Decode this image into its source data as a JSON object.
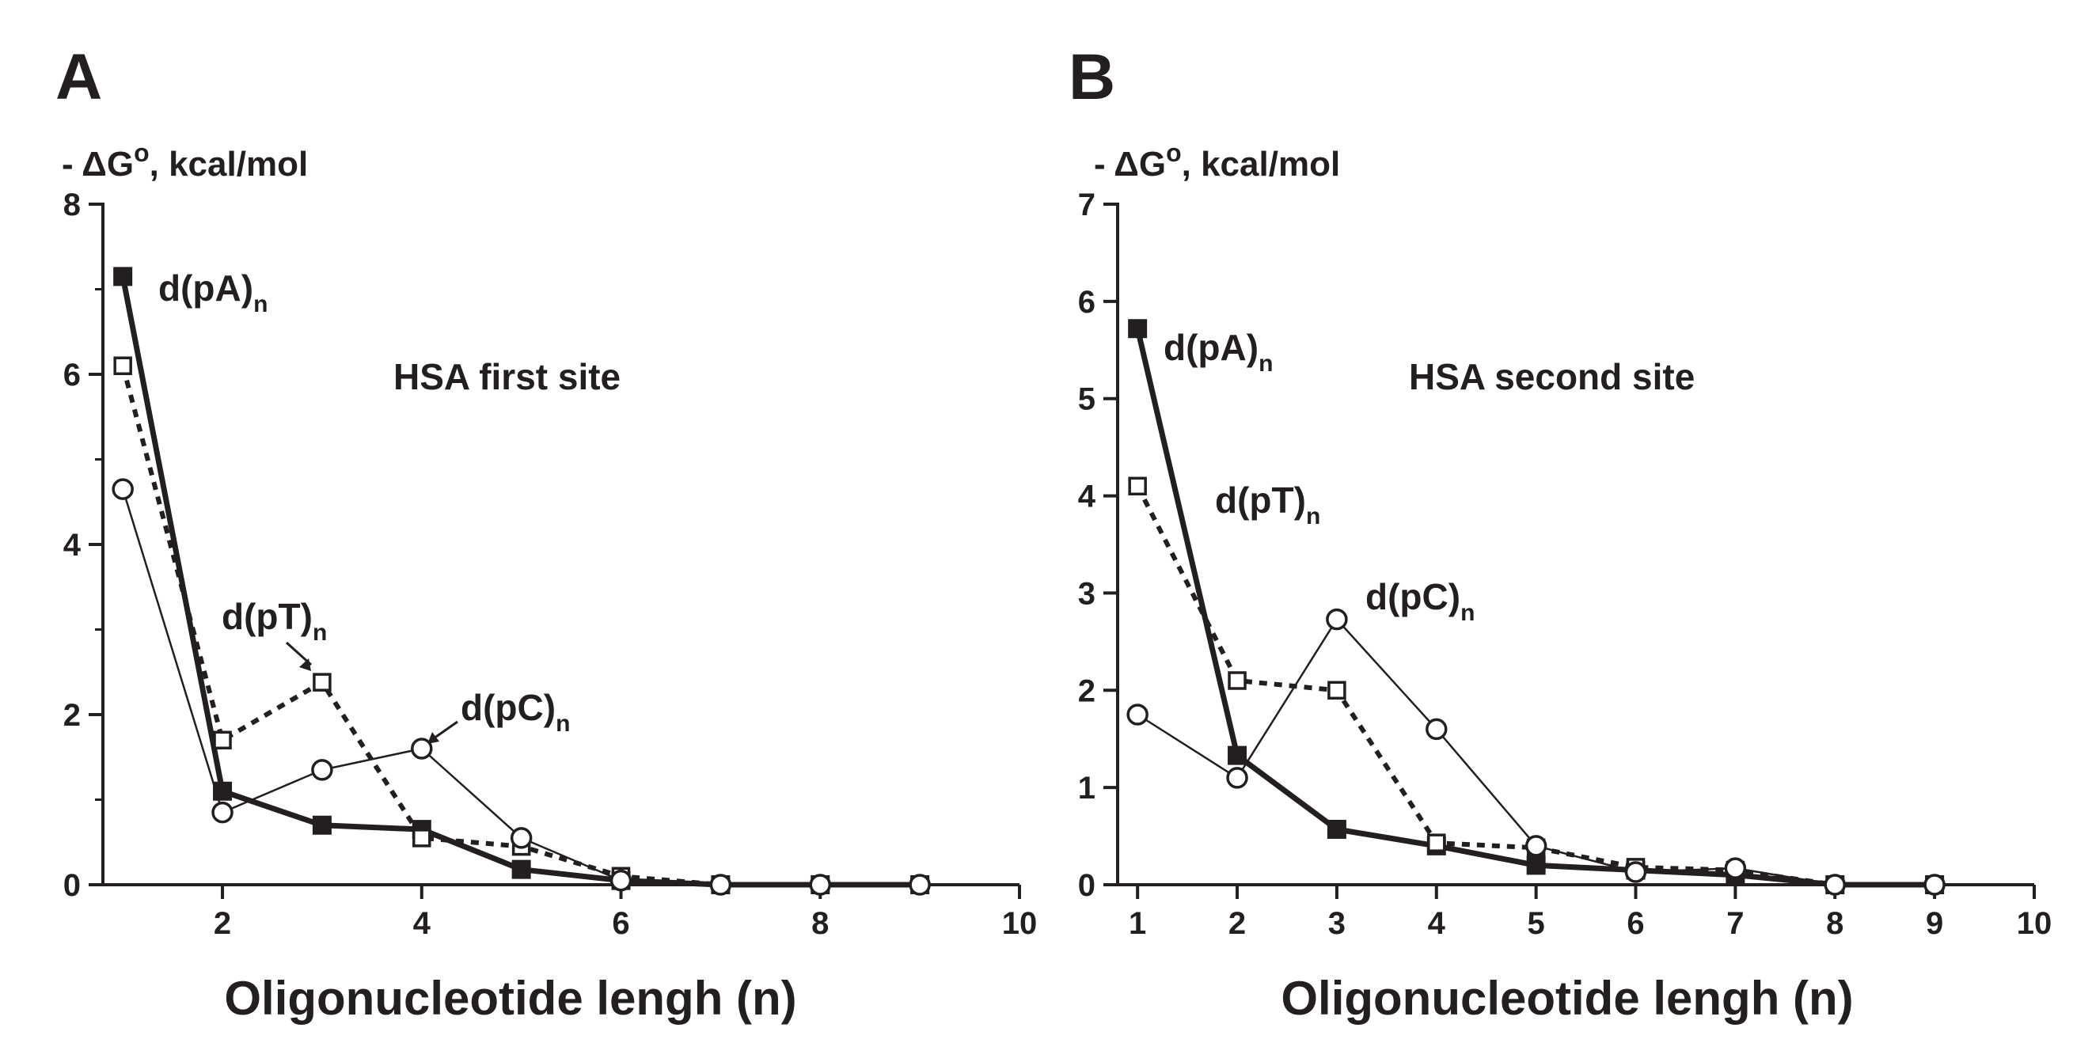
{
  "chart_data": [
    {
      "panel": "A",
      "type": "line",
      "ylabel": "- ΔG",
      "ylabel_sup": "o",
      "ylabel_units": ", kcal/mol",
      "xlabel": "Oligonucleotide lengh (n)",
      "xlim": [
        0.8,
        10
      ],
      "ylim": [
        0,
        8
      ],
      "xticks": [
        2,
        4,
        6,
        8,
        10
      ],
      "yticks": [
        0,
        2,
        4,
        6,
        8
      ],
      "annotations": [
        {
          "text": "HSA first site"
        },
        {
          "text": "d(pA)",
          "sub": "n"
        },
        {
          "text": "d(pT)",
          "sub": "n"
        },
        {
          "text": "d(pC)",
          "sub": "n"
        }
      ],
      "series": [
        {
          "id": "pA",
          "marker": "filled-square",
          "line": "thick-solid",
          "x": [
            1,
            2,
            3,
            4,
            5,
            6,
            7,
            8,
            9
          ],
          "y": [
            7.15,
            1.1,
            0.7,
            0.65,
            0.18,
            0.05,
            0.0,
            0.0,
            0.0
          ]
        },
        {
          "id": "pT",
          "marker": "open-square",
          "line": "dotted",
          "x": [
            1,
            2,
            3,
            4,
            5,
            6,
            7,
            8,
            9
          ],
          "y": [
            6.1,
            1.7,
            2.38,
            0.55,
            0.45,
            0.1,
            0.0,
            0.0,
            0.0
          ]
        },
        {
          "id": "pC",
          "marker": "open-circle",
          "line": "thin-solid",
          "x": [
            1,
            2,
            3,
            4,
            5,
            6,
            7,
            8,
            9
          ],
          "y": [
            4.65,
            0.85,
            1.35,
            1.6,
            0.55,
            0.05,
            0.0,
            0.0,
            0.0
          ]
        }
      ]
    },
    {
      "panel": "B",
      "type": "line",
      "ylabel": "- ΔG",
      "ylabel_sup": "o",
      "ylabel_units": ", kcal/mol",
      "xlabel": "Oligonucleotide lengh (n)",
      "xlim": [
        0.8,
        10
      ],
      "ylim": [
        0,
        7
      ],
      "xticks": [
        1,
        2,
        3,
        4,
        5,
        6,
        7,
        8,
        9,
        10
      ],
      "yticks": [
        0,
        1,
        2,
        3,
        4,
        5,
        6,
        7
      ],
      "annotations": [
        {
          "text": "HSA second site"
        },
        {
          "text": "d(pA)",
          "sub": "n"
        },
        {
          "text": "d(pT)",
          "sub": "n"
        },
        {
          "text": "d(pC)",
          "sub": "n"
        }
      ],
      "series": [
        {
          "id": "pA",
          "marker": "filled-square",
          "line": "thick-solid",
          "x": [
            1,
            2,
            3,
            4,
            5,
            6,
            7,
            8,
            9
          ],
          "y": [
            5.72,
            1.33,
            0.57,
            0.4,
            0.2,
            0.15,
            0.1,
            0.0,
            0.0
          ]
        },
        {
          "id": "pT",
          "marker": "open-square",
          "line": "dotted",
          "x": [
            1,
            2,
            3,
            4,
            5,
            6,
            7,
            8,
            9
          ],
          "y": [
            4.1,
            2.1,
            2.0,
            0.43,
            0.38,
            0.18,
            0.15,
            0.0,
            0.0
          ]
        },
        {
          "id": "pC",
          "marker": "open-circle",
          "line": "thin-solid",
          "x": [
            1,
            2,
            3,
            4,
            5,
            6,
            7,
            8,
            9
          ],
          "y": [
            1.75,
            1.1,
            2.73,
            1.6,
            0.4,
            0.13,
            0.17,
            0.0,
            0.0
          ]
        }
      ]
    }
  ]
}
